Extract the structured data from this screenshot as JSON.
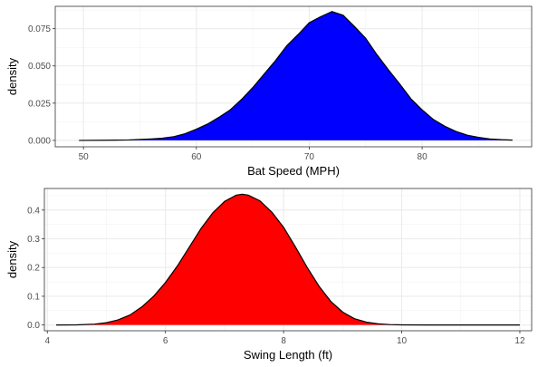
{
  "chart_data": [
    {
      "type": "area",
      "xlabel": "Bat Speed (MPH)",
      "ylabel": "density",
      "xlim": [
        47.5,
        89.7
      ],
      "ylim": [
        -0.0043,
        0.09
      ],
      "xticks": [
        50,
        60,
        70,
        80
      ],
      "yticks": [
        0.0,
        0.025,
        0.05,
        0.075
      ],
      "ytick_labels": [
        "0.000",
        "0.025",
        "0.050",
        "0.075"
      ],
      "grid": true,
      "fill": "#0000ff",
      "line_color": "#000000",
      "x": [
        49.6,
        52,
        54,
        56,
        57,
        58,
        59,
        60,
        61,
        62,
        63,
        64,
        65,
        66,
        67,
        68,
        69,
        70,
        71,
        72,
        73,
        74,
        75,
        76,
        77,
        78,
        79,
        80,
        81,
        82,
        83,
        84,
        85,
        86,
        87,
        88
      ],
      "y": [
        0.0,
        0.0001,
        0.0003,
        0.001,
        0.0015,
        0.0025,
        0.0045,
        0.0075,
        0.011,
        0.0155,
        0.0205,
        0.0275,
        0.0355,
        0.0445,
        0.0535,
        0.0635,
        0.071,
        0.079,
        0.083,
        0.0865,
        0.084,
        0.0765,
        0.0685,
        0.0575,
        0.0475,
        0.038,
        0.028,
        0.0205,
        0.014,
        0.0095,
        0.006,
        0.0035,
        0.002,
        0.001,
        0.0005,
        0.0002
      ]
    },
    {
      "type": "area",
      "xlabel": "Swing Length (ft)",
      "ylabel": "density",
      "xlim": [
        3.95,
        12.2
      ],
      "ylim": [
        -0.02,
        0.475
      ],
      "xticks": [
        4,
        6,
        8,
        10,
        12
      ],
      "yticks": [
        0.0,
        0.1,
        0.2,
        0.3,
        0.4
      ],
      "ytick_labels": [
        "0.0",
        "0.1",
        "0.2",
        "0.3",
        "0.4"
      ],
      "grid": true,
      "fill": "#ff0000",
      "line_color": "#000000",
      "x": [
        4.15,
        4.5,
        4.8,
        5.0,
        5.2,
        5.4,
        5.6,
        5.8,
        6.0,
        6.2,
        6.4,
        6.6,
        6.8,
        7.0,
        7.2,
        7.3,
        7.4,
        7.6,
        7.8,
        8.0,
        8.2,
        8.4,
        8.6,
        8.8,
        9.0,
        9.2,
        9.4,
        9.6,
        9.8,
        10.0,
        10.4,
        11.0,
        12.0
      ],
      "y": [
        0.0,
        0.0005,
        0.003,
        0.008,
        0.018,
        0.035,
        0.063,
        0.1,
        0.148,
        0.205,
        0.27,
        0.335,
        0.39,
        0.43,
        0.452,
        0.455,
        0.452,
        0.432,
        0.393,
        0.34,
        0.272,
        0.2,
        0.135,
        0.082,
        0.045,
        0.022,
        0.01,
        0.004,
        0.0015,
        0.0005,
        0.0001,
        0.0,
        0.0
      ]
    }
  ]
}
